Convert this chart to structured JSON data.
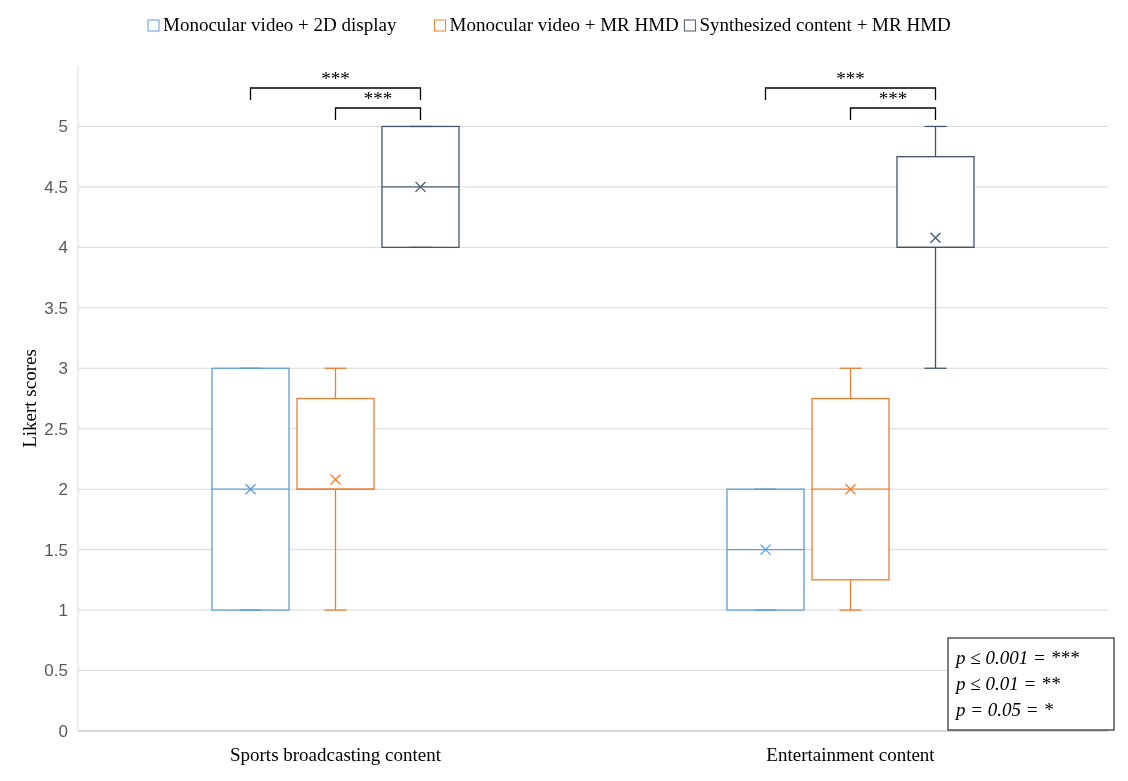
{
  "chart_data": {
    "type": "box",
    "ylabel": "Likert scores",
    "categories": [
      "Sports broadcasting content",
      "Entertainment content"
    ],
    "series": [
      {
        "name": "Monocular video + 2D display",
        "color": "#5b9bd5",
        "boxes": [
          {
            "low": 1,
            "q1": 1,
            "median": 2,
            "q3": 3,
            "high": 3,
            "mean": 2
          },
          {
            "low": 1,
            "q1": 1,
            "median": 1.5,
            "q3": 2,
            "high": 2,
            "mean": 1.5
          }
        ]
      },
      {
        "name": "Monocular video + MR HMD",
        "color": "#ed7d31",
        "boxes": [
          {
            "low": 1,
            "q1": 2,
            "median": 2,
            "q3": 2.75,
            "high": 3,
            "mean": 2.08
          },
          {
            "low": 1,
            "q1": 1.25,
            "median": 2,
            "q3": 2.75,
            "high": 3,
            "mean": 2
          }
        ]
      },
      {
        "name": "Synthesized content + MR HMD",
        "color": "#44546a",
        "boxes": [
          {
            "low": 4,
            "q1": 4,
            "median": 4.5,
            "q3": 5,
            "high": 5,
            "mean": 4.5
          },
          {
            "low": 3,
            "q1": 4,
            "median": 4,
            "q3": 4.75,
            "high": 5,
            "mean": 4.08
          }
        ]
      }
    ],
    "ylim": [
      0,
      5.5
    ],
    "yticks": [
      0,
      0.5,
      1,
      1.5,
      2,
      2.5,
      3,
      3.5,
      4,
      4.5,
      5
    ],
    "grid": "y",
    "legend": "top",
    "annotations": [
      "***",
      "***",
      "***",
      "***",
      "p ≤ 0.001 = ***",
      "p ≤ 0.01 = **",
      "p = 0.05 = *"
    ]
  }
}
